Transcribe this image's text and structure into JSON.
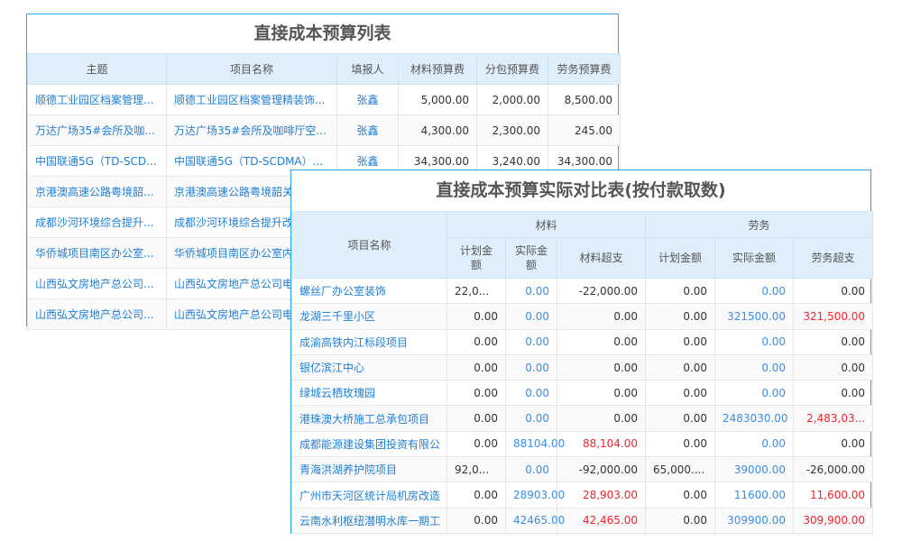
{
  "budget_list": {
    "title": "直接成本预算列表",
    "columns": [
      "主题",
      "项目名称",
      "填报人",
      "材料预算费",
      "分包预算费",
      "劳务预算费"
    ],
    "rows": [
      {
        "subject": "顺德工业园区档案管理...",
        "project": "顺德工业园区档案管理精装饰...",
        "reporter": "张鑫",
        "material": "5,000.00",
        "subcontract": "2,000.00",
        "labor": "8,500.00"
      },
      {
        "subject": "万达广场35#会所及咖...",
        "project": "万达广场35#会所及咖啡厅空...",
        "reporter": "张鑫",
        "material": "4,300.00",
        "subcontract": "2,300.00",
        "labor": "245.00"
      },
      {
        "subject": "中国联通5G（TD-SCD...",
        "project": "中国联通5G（TD-SCDMA）...",
        "reporter": "张鑫",
        "material": "34,300.00",
        "subcontract": "3,240.00",
        "labor": "34,300.00"
      },
      {
        "subject": "京港澳高速公路粤境韶...",
        "project": "京港澳高速公路粤境韶关"
      },
      {
        "subject": "成都沙河环境综合提升...",
        "project": "成都沙河环境综合提升改"
      },
      {
        "subject": "华侨城项目南区办公室...",
        "project": "华侨城项目南区办公室内"
      },
      {
        "subject": "山西弘文房地产总公司...",
        "project": "山西弘文房地产总公司电"
      },
      {
        "subject": "山西弘文房地产总公司...",
        "project": "山西弘文房地产总公司电"
      }
    ]
  },
  "comparison": {
    "title": "直接成本预算实际对比表(按付款取数)",
    "project_header": "项目名称",
    "group_material": "材料",
    "group_labor": "劳务",
    "sub_headers": [
      "计划金额",
      "实际金额",
      "材料超支",
      "计划金额",
      "实际金额",
      "劳务超支"
    ],
    "rows": [
      {
        "name": "螺丝厂办公室装饰",
        "mp": "22,0...",
        "ma": "0.00",
        "mo": "-22,000.00",
        "lp": "0.00",
        "la": "0.00",
        "lo": "0.00",
        "mo_red": false,
        "lo_red": false
      },
      {
        "name": "龙湖三千里小区",
        "mp": "0.00",
        "ma": "0.00",
        "mo": "0.00",
        "lp": "0.00",
        "la": "321500.00",
        "lo": "321,500.00",
        "mo_red": false,
        "lo_red": true
      },
      {
        "name": "成渝高铁内江标段项目",
        "mp": "0.00",
        "ma": "0.00",
        "mo": "0.00",
        "lp": "0.00",
        "la": "0.00",
        "lo": "0.00",
        "mo_red": false,
        "lo_red": false
      },
      {
        "name": "银亿滨江中心",
        "mp": "0.00",
        "ma": "0.00",
        "mo": "0.00",
        "lp": "0.00",
        "la": "0.00",
        "lo": "0.00",
        "mo_red": false,
        "lo_red": false
      },
      {
        "name": "绿城云栖玫瑰园",
        "mp": "0.00",
        "ma": "0.00",
        "mo": "0.00",
        "lp": "0.00",
        "la": "0.00",
        "lo": "0.00",
        "mo_red": false,
        "lo_red": false
      },
      {
        "name": "港珠澳大桥施工总承包项目",
        "mp": "0.00",
        "ma": "0.00",
        "mo": "0.00",
        "lp": "0.00",
        "la": "2483030.00",
        "lo": "2,483,03...",
        "mo_red": false,
        "lo_red": true
      },
      {
        "name": "成都能源建设集团投资有限公",
        "mp": "0.00",
        "ma": "88104.00",
        "mo": "88,104.00",
        "lp": "0.00",
        "la": "0.00",
        "lo": "0.00",
        "mo_red": true,
        "lo_red": false
      },
      {
        "name": "青海洪湖养护院项目",
        "mp": "92,0...",
        "ma": "0.00",
        "mo": "-92,000.00",
        "lp": "65,000....",
        "la": "39000.00",
        "lo": "-26,000.00",
        "mo_red": false,
        "lo_red": false
      },
      {
        "name": "广州市天河区统计局机房改造",
        "mp": "0.00",
        "ma": "28903.00",
        "mo": "28,903.00",
        "lp": "0.00",
        "la": "11600.00",
        "lo": "11,600.00",
        "mo_red": true,
        "lo_red": true
      },
      {
        "name": "云南水利枢纽潜明水库一期工",
        "mp": "0.00",
        "ma": "42465.00",
        "mo": "42,465.00",
        "lp": "0.00",
        "la": "309900.00",
        "lo": "309,900.00",
        "mo_red": true,
        "lo_red": true
      }
    ]
  },
  "colors": {
    "border": "#2ea7ec",
    "header_bg": "#deeefb",
    "link": "#1e7fd6",
    "value_blue": "#3a8ee6",
    "over_red": "#f5222d"
  }
}
